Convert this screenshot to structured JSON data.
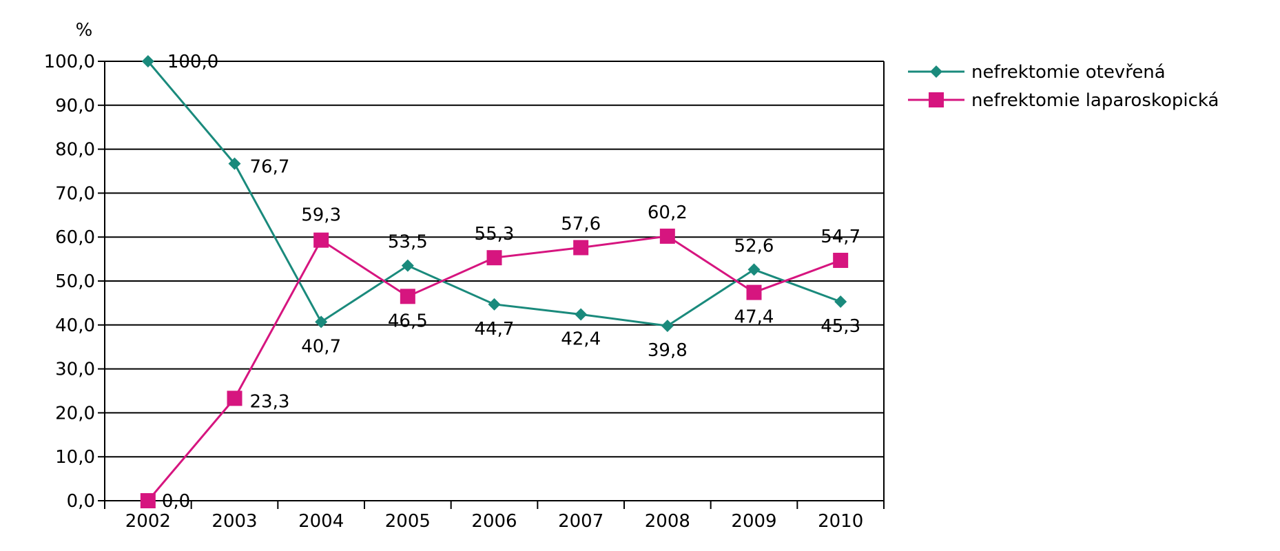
{
  "chart_data": {
    "type": "line",
    "title": "",
    "xlabel": "",
    "ylabel": "%",
    "ylim": [
      0,
      100
    ],
    "y_ticks": [
      "0,0",
      "10,0",
      "20,0",
      "30,0",
      "40,0",
      "50,0",
      "60,0",
      "70,0",
      "80,0",
      "90,0",
      "100,0"
    ],
    "x": [
      "2002",
      "2003",
      "2004",
      "2005",
      "2006",
      "2007",
      "2008",
      "2009",
      "2010"
    ],
    "grid": true,
    "legend_placement": "top-right",
    "series": [
      {
        "name": "nefrektomie otevřená",
        "color": "#1a8a7c",
        "marker": "diamond",
        "values": [
          100.0,
          76.7,
          40.7,
          53.5,
          44.7,
          42.4,
          39.8,
          52.6,
          45.3
        ],
        "labels": [
          "100,0",
          "76,7",
          "40,7",
          "53,5",
          "44,7",
          "42,4",
          "39,8",
          "52,6",
          "45,3"
        ]
      },
      {
        "name": "nefrektomie laparoskopická",
        "color": "#d6157f",
        "marker": "square",
        "values": [
          0.0,
          23.3,
          59.3,
          46.5,
          55.3,
          57.6,
          60.2,
          47.4,
          54.7
        ],
        "labels": [
          "0,0",
          "23,3",
          "59,3",
          "46,5",
          "55,3",
          "57,6",
          "60,2",
          "47,4",
          "54,7"
        ]
      }
    ]
  }
}
